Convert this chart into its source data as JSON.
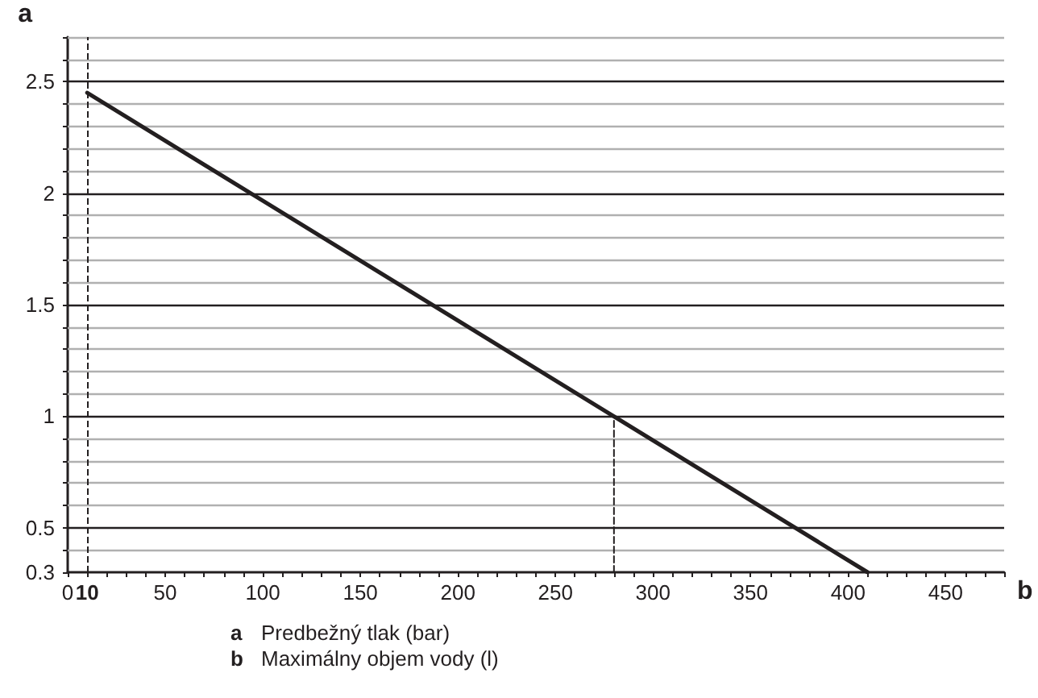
{
  "chart_data": {
    "type": "line",
    "xlabel": "b",
    "ylabel": "a",
    "annotations": [
      "a",
      "Predbežný tlak (bar)",
      "b",
      "Maximálny objem vody (l)"
    ],
    "xlim": [
      0,
      480
    ],
    "ylim": [
      0.3,
      2.7
    ],
    "xticks": [
      0,
      10,
      {
        "value": 20,
        "label": null
      },
      {
        "value": 30,
        "label": null
      },
      {
        "value": 40,
        "label": null
      },
      50,
      {
        "value": 60,
        "label": null
      },
      {
        "value": 70,
        "label": null
      },
      {
        "value": 80,
        "label": null
      },
      {
        "value": 90,
        "label": null
      },
      100,
      {
        "value": 110,
        "label": null
      },
      {
        "value": 120,
        "label": null
      },
      {
        "value": 130,
        "label": null
      },
      {
        "value": 140,
        "label": null
      },
      150,
      {
        "value": 160,
        "label": null
      },
      {
        "value": 170,
        "label": null
      },
      {
        "value": 180,
        "label": null
      },
      {
        "value": 190,
        "label": null
      },
      200,
      {
        "value": 210,
        "label": null
      },
      {
        "value": 220,
        "label": null
      },
      {
        "value": 230,
        "label": null
      },
      {
        "value": 240,
        "label": null
      },
      250,
      {
        "value": 260,
        "label": null
      },
      {
        "value": 270,
        "label": null
      },
      {
        "value": 280,
        "label": null
      },
      {
        "value": 290,
        "label": null
      },
      300,
      {
        "value": 310,
        "label": null
      },
      {
        "value": 320,
        "label": null
      },
      {
        "value": 330,
        "label": null
      },
      {
        "value": 340,
        "label": null
      },
      350,
      {
        "value": 360,
        "label": null
      },
      {
        "value": 370,
        "label": null
      },
      {
        "value": 380,
        "label": null
      },
      {
        "value": 390,
        "label": null
      },
      400,
      {
        "value": 410,
        "label": null
      },
      {
        "value": 420,
        "label": null
      },
      {
        "value": 430,
        "label": null
      },
      {
        "value": 440,
        "label": null
      },
      450,
      {
        "value": 460,
        "label": null
      },
      {
        "value": 470,
        "label": null
      },
      {
        "value": 480,
        "label": null
      }
    ],
    "yticks": [
      0.3,
      {
        "value": 0.4,
        "label": null
      },
      0.5,
      {
        "value": 0.6,
        "label": null
      },
      {
        "value": 0.7,
        "label": null
      },
      {
        "value": 0.8,
        "label": null
      },
      {
        "value": 0.9,
        "label": null
      },
      1,
      {
        "value": 1.1,
        "label": null
      },
      {
        "value": 1.2,
        "label": null
      },
      {
        "value": 1.3,
        "label": null
      },
      {
        "value": 1.4,
        "label": null
      },
      1.5,
      {
        "value": 1.6,
        "label": null
      },
      {
        "value": 1.7,
        "label": null
      },
      {
        "value": 1.8,
        "label": null
      },
      {
        "value": 1.9,
        "label": null
      },
      2,
      {
        "value": 2.1,
        "label": null
      },
      {
        "value": 2.2,
        "label": null
      },
      {
        "value": 2.3,
        "label": null
      },
      {
        "value": 2.4,
        "label": null
      },
      2.5,
      {
        "value": 2.6,
        "label": null
      },
      {
        "value": 2.7,
        "label": null
      }
    ],
    "grid": "y",
    "marker": "none",
    "series": [
      {
        "color": "#231f20",
        "x": [
          10,
          410
        ],
        "values": [
          2.45,
          0.3
        ],
        "line_style": "solid"
      },
      {
        "color": "#231f20",
        "x": [
          280,
          280
        ],
        "values": [
          0.3,
          1
        ],
        "line_style": "dashed"
      }
    ],
    "ref_lines": [
      {
        "axis": "x",
        "value": 10,
        "color": "#231f20",
        "line_style": "dashed"
      }
    ]
  }
}
